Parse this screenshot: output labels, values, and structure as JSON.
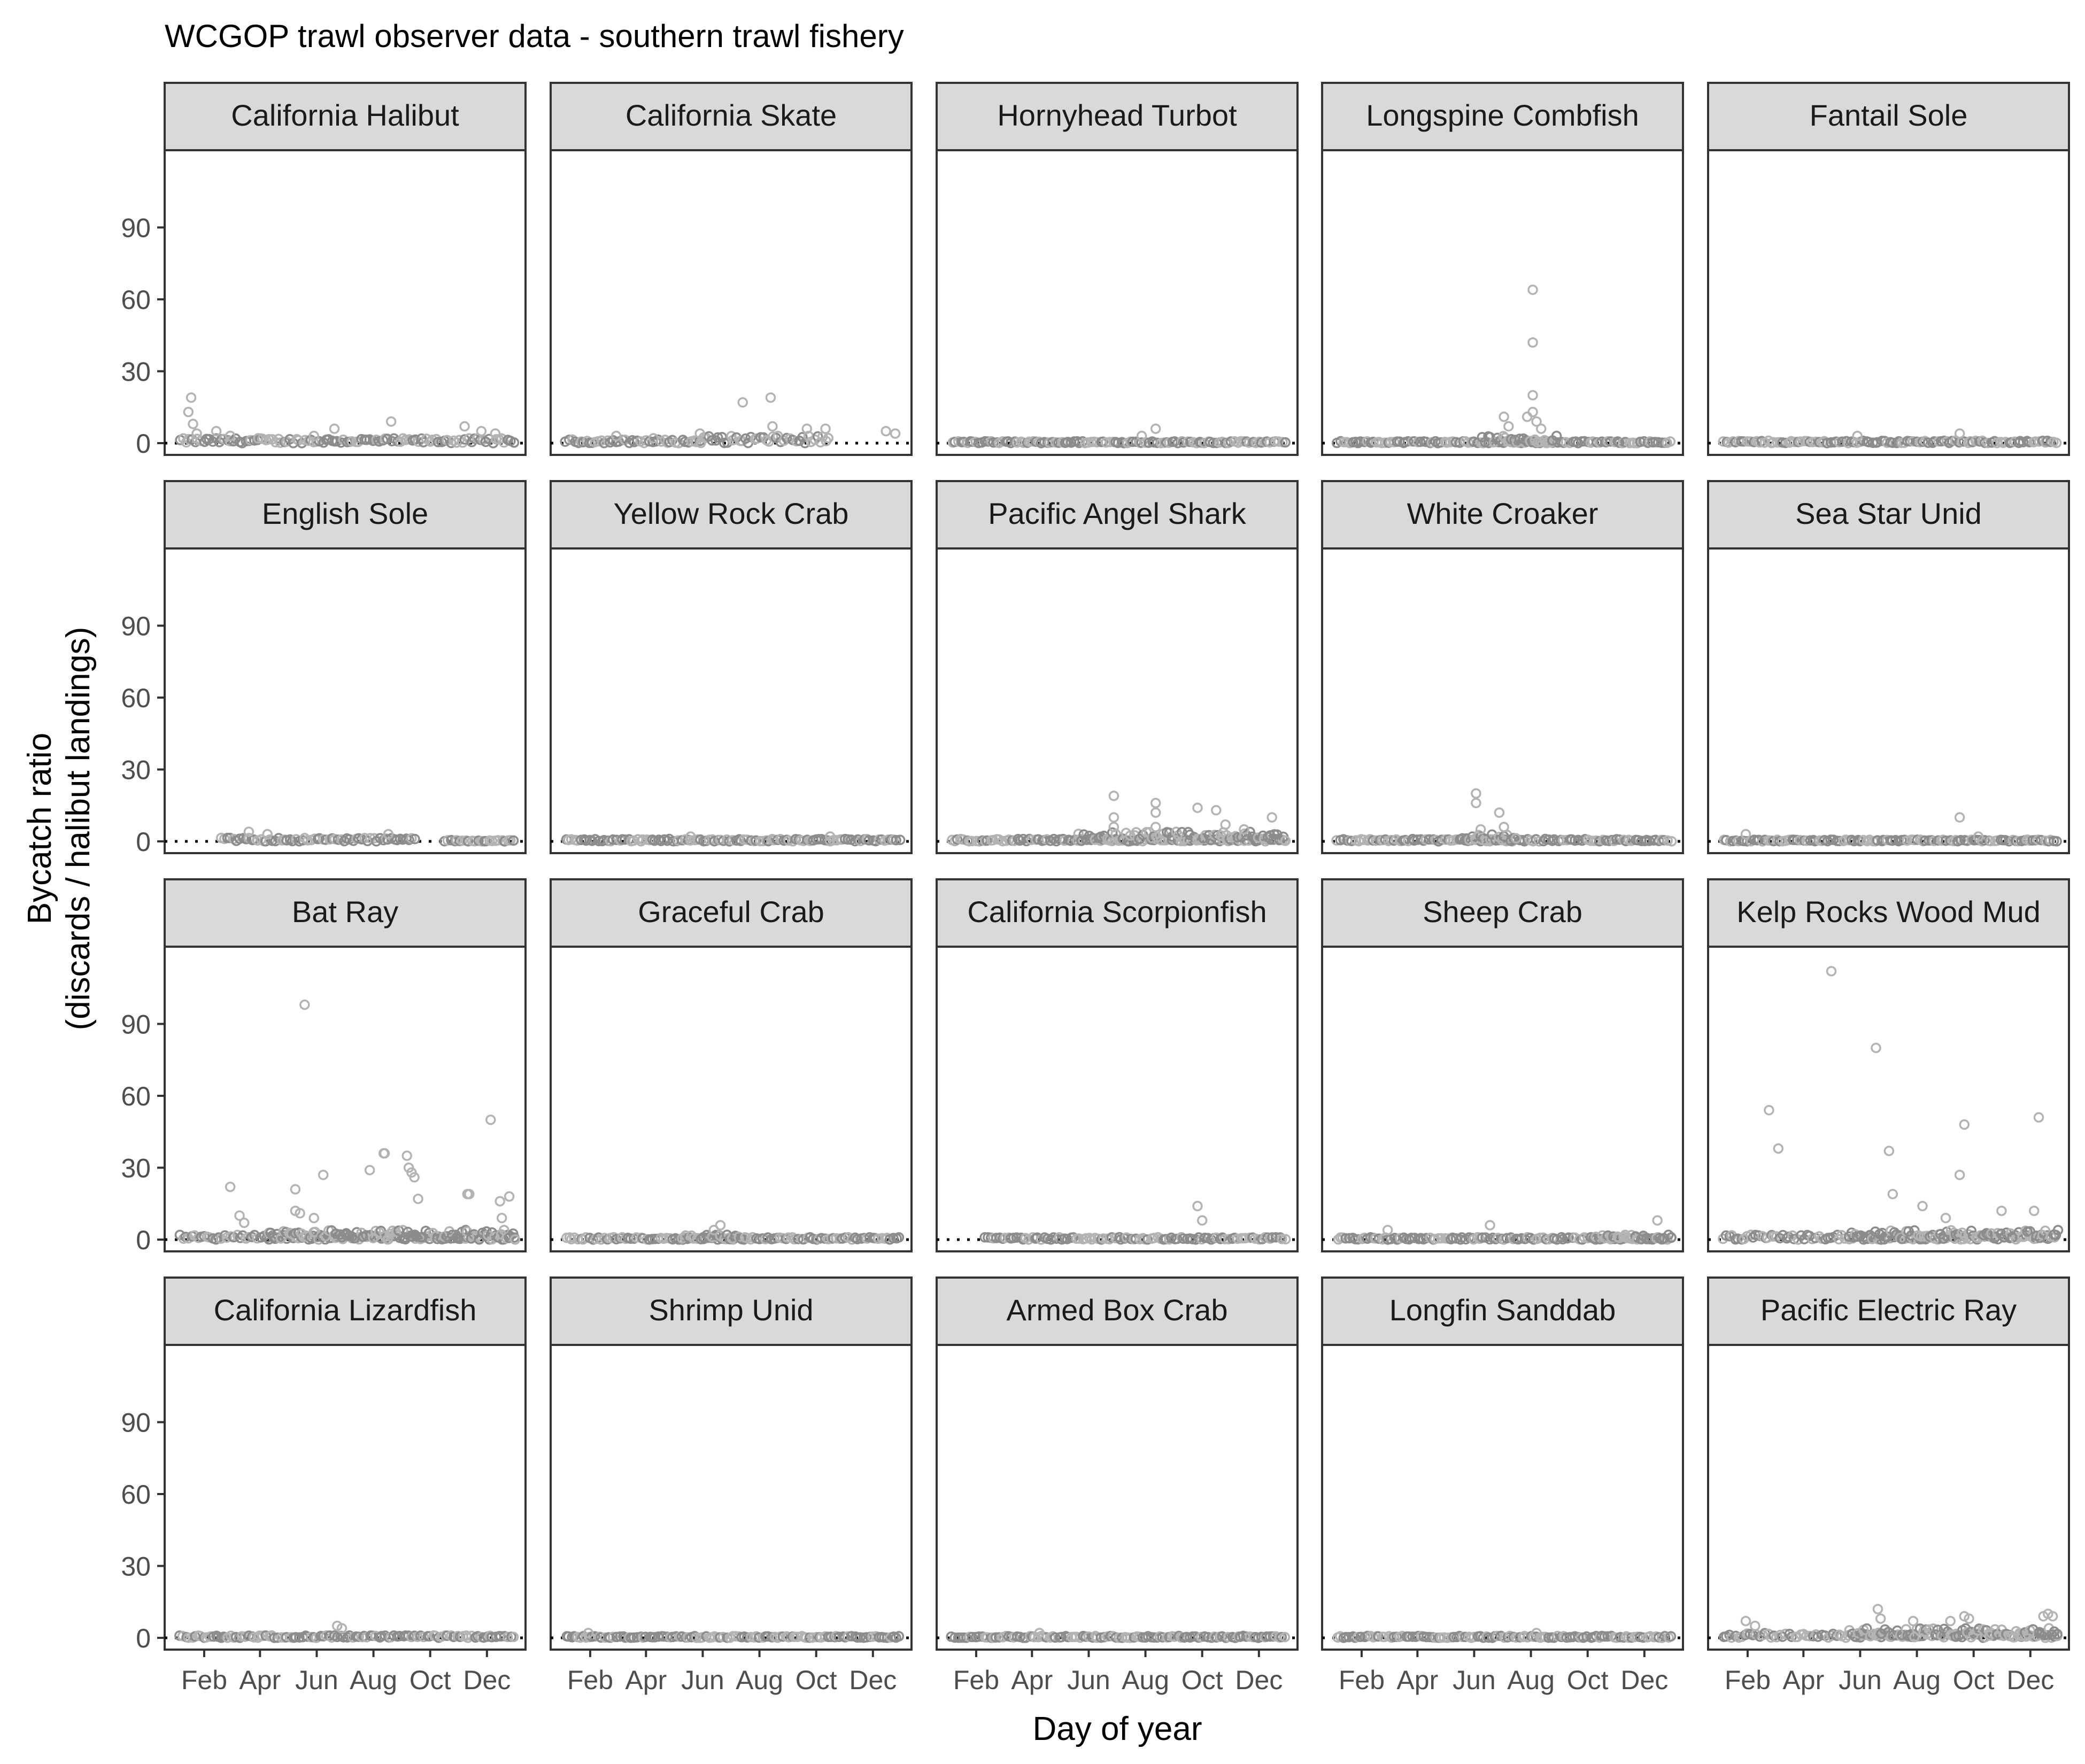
{
  "chart_data": {
    "type": "scatter",
    "title": "WCGOP trawl observer data - southern trawl fishery",
    "xlabel": "Day of year",
    "ylabel": [
      "Bycatch ratio",
      "(discards / halibut landings)"
    ],
    "xlim": [
      1,
      366
    ],
    "ylim": [
      0,
      120
    ],
    "x_ticks": [
      {
        "label": "Feb",
        "day": 32
      },
      {
        "label": "Apr",
        "day": 92
      },
      {
        "label": "Jun",
        "day": 153
      },
      {
        "label": "Aug",
        "day": 214
      },
      {
        "label": "Oct",
        "day": 275
      },
      {
        "label": "Dec",
        "day": 336
      }
    ],
    "y_ticks": [
      0,
      30,
      60,
      90
    ],
    "reference_line": {
      "y": 0,
      "style": "dotted"
    },
    "point_color": "#b3b3b3",
    "dense_point_color": "#8c8c8c",
    "grid": false,
    "facets": [
      {
        "name": "California Halibut",
        "points": [
          [
            18,
            19
          ],
          [
            15,
            13
          ],
          [
            20,
            8
          ],
          [
            24,
            4
          ],
          [
            45,
            5
          ],
          [
            60,
            3
          ],
          [
            90,
            2
          ],
          [
            150,
            3
          ],
          [
            172,
            6
          ],
          [
            233,
            9
          ],
          [
            312,
            7
          ],
          [
            330,
            5
          ],
          [
            345,
            4
          ]
        ],
        "dense": [
          [
            5,
            120,
            2
          ],
          [
            120,
            366,
            2
          ]
        ]
      },
      {
        "name": "California Skate",
        "points": [
          [
            60,
            3
          ],
          [
            100,
            2
          ],
          [
            150,
            4
          ],
          [
            196,
            17
          ],
          [
            226,
            19
          ],
          [
            228,
            7
          ],
          [
            265,
            6
          ],
          [
            285,
            6
          ],
          [
            350,
            5
          ],
          [
            360,
            4
          ]
        ],
        "dense": [
          [
            5,
            150,
            1.5
          ],
          [
            150,
            290,
            3
          ]
        ]
      },
      {
        "name": "Hornyhead Turbot",
        "points": [
          [
            225,
            6
          ],
          [
            210,
            3
          ]
        ],
        "dense": [
          [
            5,
            366,
            0.8
          ]
        ]
      },
      {
        "name": "Longspine Combfish",
        "points": [
          [
            216,
            64
          ],
          [
            216,
            42
          ],
          [
            216,
            20
          ],
          [
            216,
            13
          ],
          [
            210,
            11
          ],
          [
            220,
            9
          ],
          [
            225,
            6
          ],
          [
            185,
            11
          ],
          [
            190,
            7
          ]
        ],
        "dense": [
          [
            5,
            366,
            0.8
          ],
          [
            160,
            240,
            3
          ]
        ]
      },
      {
        "name": "Fantail Sole",
        "points": [
          [
            150,
            3
          ],
          [
            260,
            4
          ]
        ],
        "dense": [
          [
            5,
            366,
            1
          ]
        ]
      },
      {
        "name": "English Sole",
        "points": [
          [
            80,
            4
          ],
          [
            100,
            3
          ],
          [
            230,
            3
          ]
        ],
        "dense": [
          [
            50,
            260,
            1.5
          ],
          [
            290,
            366,
            0.5
          ]
        ]
      },
      {
        "name": "Yellow Rock Crab",
        "points": [
          [
            140,
            2
          ],
          [
            290,
            2
          ]
        ],
        "dense": [
          [
            5,
            366,
            1
          ]
        ]
      },
      {
        "name": "Pacific Angel Shark",
        "points": [
          [
            180,
            19
          ],
          [
            180,
            10
          ],
          [
            225,
            16
          ],
          [
            225,
            12
          ],
          [
            270,
            14
          ],
          [
            290,
            13
          ],
          [
            350,
            10
          ],
          [
            180,
            6
          ],
          [
            225,
            6
          ],
          [
            300,
            7
          ],
          [
            320,
            5
          ]
        ],
        "dense": [
          [
            5,
            366,
            1
          ],
          [
            140,
            366,
            4
          ]
        ]
      },
      {
        "name": "White Croaker",
        "points": [
          [
            155,
            20
          ],
          [
            155,
            16
          ],
          [
            180,
            12
          ],
          [
            185,
            6
          ],
          [
            160,
            5
          ]
        ],
        "dense": [
          [
            5,
            366,
            1
          ],
          [
            140,
            200,
            3
          ]
        ]
      },
      {
        "name": "Sea Star Unid",
        "points": [
          [
            260,
            10
          ],
          [
            30,
            3
          ],
          [
            280,
            2
          ]
        ],
        "dense": [
          [
            5,
            366,
            0.7
          ]
        ]
      },
      {
        "name": "Bat Ray",
        "points": [
          [
            140,
            98
          ],
          [
            60,
            22
          ],
          [
            130,
            21
          ],
          [
            160,
            27
          ],
          [
            225,
            36
          ],
          [
            226,
            36
          ],
          [
            250,
            35
          ],
          [
            252,
            30
          ],
          [
            255,
            28
          ],
          [
            258,
            26
          ],
          [
            262,
            17
          ],
          [
            340,
            50
          ],
          [
            315,
            19
          ],
          [
            317,
            19
          ],
          [
            360,
            18
          ],
          [
            350,
            16
          ],
          [
            352,
            9
          ],
          [
            210,
            29
          ],
          [
            70,
            10
          ],
          [
            75,
            7
          ],
          [
            130,
            12
          ],
          [
            135,
            11
          ],
          [
            150,
            9
          ]
        ],
        "dense": [
          [
            5,
            366,
            2
          ],
          [
            100,
            366,
            4
          ]
        ]
      },
      {
        "name": "Graceful Crab",
        "points": [
          [
            172,
            6
          ],
          [
            165,
            4
          ]
        ],
        "dense": [
          [
            5,
            366,
            1
          ],
          [
            130,
            200,
            2
          ]
        ]
      },
      {
        "name": "California Scorpionfish",
        "points": [
          [
            270,
            14
          ],
          [
            275,
            8
          ]
        ],
        "dense": [
          [
            40,
            366,
            1
          ]
        ]
      },
      {
        "name": "Sheep Crab",
        "points": [
          [
            170,
            6
          ],
          [
            350,
            8
          ],
          [
            60,
            4
          ]
        ],
        "dense": [
          [
            5,
            366,
            1
          ],
          [
            280,
            366,
            2
          ]
        ]
      },
      {
        "name": "Kelp Rocks Wood Mud",
        "points": [
          [
            122,
            112
          ],
          [
            170,
            80
          ],
          [
            55,
            54
          ],
          [
            345,
            51
          ],
          [
            265,
            48
          ],
          [
            65,
            38
          ],
          [
            184,
            37
          ],
          [
            260,
            27
          ],
          [
            188,
            19
          ],
          [
            220,
            14
          ],
          [
            305,
            12
          ],
          [
            340,
            12
          ],
          [
            245,
            9
          ]
        ],
        "dense": [
          [
            5,
            366,
            2
          ],
          [
            140,
            366,
            4
          ]
        ]
      },
      {
        "name": "California Lizardfish",
        "points": [
          [
            175,
            5
          ],
          [
            180,
            4
          ]
        ],
        "dense": [
          [
            5,
            366,
            1
          ]
        ]
      },
      {
        "name": "Shrimp Unid",
        "points": [
          [
            30,
            2
          ]
        ],
        "dense": [
          [
            5,
            366,
            0.7
          ]
        ]
      },
      {
        "name": "Armed Box Crab",
        "points": [
          [
            100,
            2
          ]
        ],
        "dense": [
          [
            5,
            366,
            0.8
          ]
        ]
      },
      {
        "name": "Longfin Sanddab",
        "points": [
          [
            220,
            2
          ]
        ],
        "dense": [
          [
            5,
            366,
            0.8
          ]
        ]
      },
      {
        "name": "Pacific Electric Ray",
        "points": [
          [
            172,
            12
          ],
          [
            175,
            8
          ],
          [
            30,
            7
          ],
          [
            40,
            5
          ],
          [
            265,
            9
          ],
          [
            270,
            8
          ],
          [
            350,
            9
          ],
          [
            355,
            10
          ],
          [
            360,
            9
          ],
          [
            210,
            7
          ],
          [
            250,
            7
          ]
        ],
        "dense": [
          [
            5,
            366,
            2
          ],
          [
            140,
            366,
            4
          ]
        ]
      }
    ]
  }
}
